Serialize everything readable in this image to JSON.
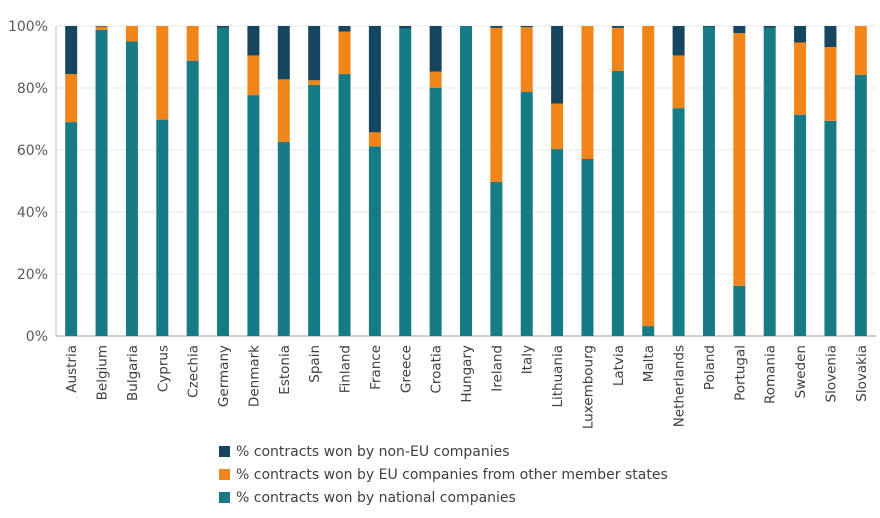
{
  "chart_data": {
    "type": "bar",
    "stacked": true,
    "title": "",
    "xlabel": "",
    "ylabel": "",
    "ylim": [
      0,
      100
    ],
    "y_ticks": [
      "0%",
      "20%",
      "40%",
      "60%",
      "80%",
      "100%"
    ],
    "y_tick_values": [
      0,
      20,
      40,
      60,
      80,
      100
    ],
    "grid": true,
    "legend_position": "bottom",
    "categories": [
      "Austria",
      "Belgium",
      "Bulgaria",
      "Cyprus",
      "Czechia",
      "Germany",
      "Denmark",
      "Estonia",
      "Spain",
      "Finland",
      "France",
      "Greece",
      "Croatia",
      "Hungary",
      "Ireland",
      "Italy",
      "Lithuania",
      "Luxembourg",
      "Latvia",
      "Malta",
      "Netherlands",
      "Poland",
      "Portugal",
      "Romania",
      "Sweden",
      "Slovenia",
      "Slovakia"
    ],
    "series": [
      {
        "name": "% contracts won by national companies",
        "color": "#167b85",
        "values": [
          69,
          98.8,
          95,
          69.8,
          88.8,
          99.4,
          77.7,
          62.6,
          81,
          84.5,
          61.2,
          99.2,
          80.1,
          100,
          49.7,
          78.7,
          60.3,
          57.1,
          85.5,
          3.2,
          73.5,
          99.7,
          16.2,
          99.4,
          71.4,
          69.4,
          84.2
        ]
      },
      {
        "name": "% contracts won by EU companies from other member states",
        "color": "#f08519",
        "values": [
          15.5,
          1,
          5,
          30.2,
          11.2,
          0,
          12.8,
          20.2,
          1.5,
          13.7,
          4.5,
          0,
          5.2,
          0,
          49.7,
          20.9,
          14.7,
          42.9,
          13.9,
          96.8,
          17,
          0,
          81.5,
          0,
          23.3,
          23.8,
          15.8
        ]
      },
      {
        "name": "% contracts won by non-EU companies",
        "color": "#16455f",
        "values": [
          15.5,
          0.2,
          0,
          0,
          0,
          0.6,
          9.5,
          17.2,
          17.5,
          1.8,
          34.3,
          0.8,
          14.7,
          0,
          0.6,
          0.4,
          25,
          0,
          0.6,
          0,
          9.5,
          0.3,
          2.3,
          0.6,
          5.3,
          6.8,
          0
        ]
      }
    ]
  },
  "legend": [
    {
      "label": "% contracts won by non-EU companies",
      "color": "#16455f"
    },
    {
      "label": "% contracts won by EU companies from other member states",
      "color": "#f08519"
    },
    {
      "label": "% contracts won by national companies",
      "color": "#167b85"
    }
  ]
}
